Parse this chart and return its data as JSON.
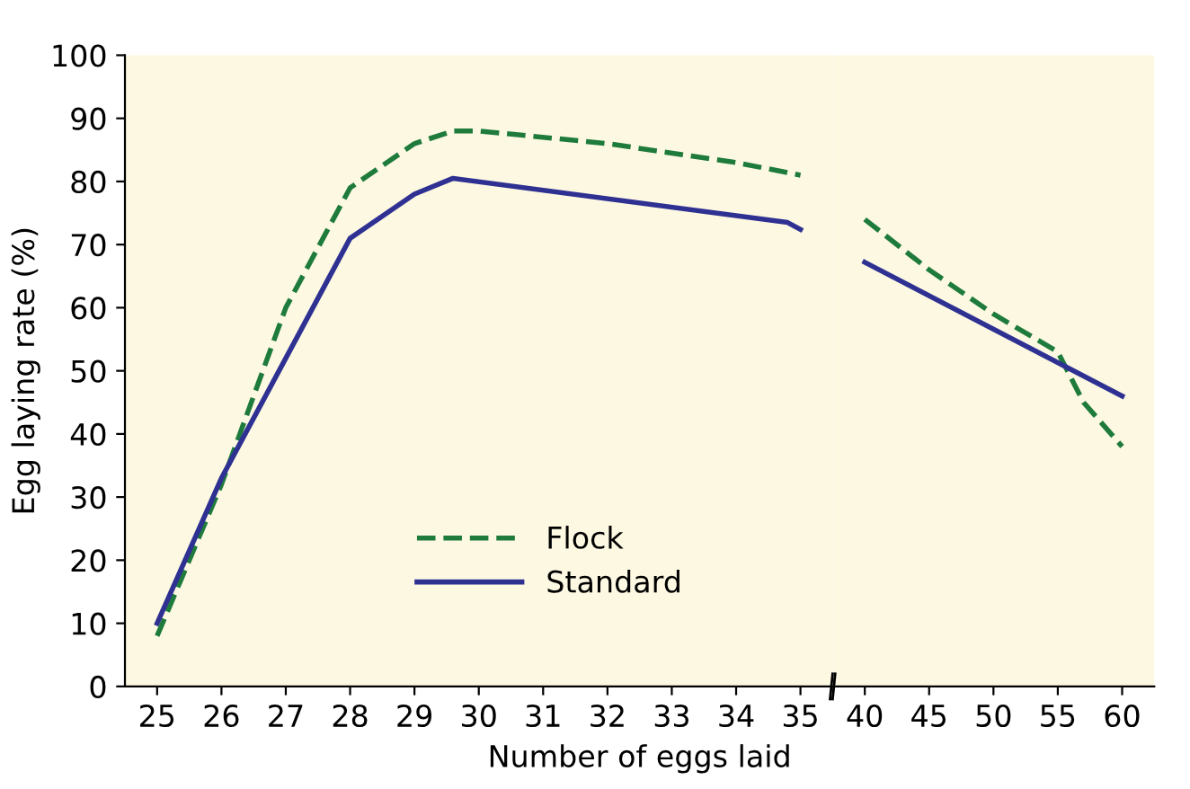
{
  "chart_data": [
    {
      "type": "line",
      "xlabel": "Number of eggs laid",
      "ylabel": "Egg laying rate (%)",
      "xlim": [
        24.5,
        35.5
      ],
      "ylim": [
        0,
        100
      ],
      "xticks": [
        25,
        26,
        27,
        28,
        29,
        30,
        31,
        32,
        33,
        34,
        35
      ],
      "yticks": [
        0,
        10,
        20,
        30,
        40,
        50,
        60,
        70,
        80,
        90,
        100
      ],
      "grid": false,
      "legend": "bottom",
      "marker": "none",
      "series": [
        {
          "name": "Flock",
          "color": "#1e7b3c",
          "line_style": "dashed",
          "x": [
            25,
            26,
            27,
            28,
            29,
            29.6,
            30,
            32,
            34,
            35
          ],
          "values": [
            8,
            32,
            60,
            79,
            86,
            88,
            88,
            86,
            83,
            81
          ]
        },
        {
          "name": "Standard",
          "color": "#2e3192",
          "line_style": "solid",
          "x": [
            25,
            26,
            27,
            28,
            29,
            29.6,
            34.8,
            35
          ],
          "values": [
            10,
            33,
            52,
            71,
            78,
            80.5,
            73.5,
            72.4
          ]
        }
      ]
    },
    {
      "type": "line",
      "xlim": [
        37.5,
        62.5
      ],
      "ylim": [
        0,
        100
      ],
      "tick_labels": "x",
      "xticks": [
        40,
        45,
        50,
        55,
        60
      ],
      "grid": false,
      "marker": "none",
      "series": [
        {
          "color": "#1e7b3c",
          "line_style": "dashed",
          "x": [
            40,
            45,
            50,
            55,
            57,
            60
          ],
          "values": [
            74,
            66,
            59,
            53,
            45,
            38
          ]
        },
        {
          "color": "#2e3192",
          "line_style": "solid",
          "x": [
            40,
            60
          ],
          "values": [
            67.2,
            46
          ]
        }
      ]
    }
  ]
}
